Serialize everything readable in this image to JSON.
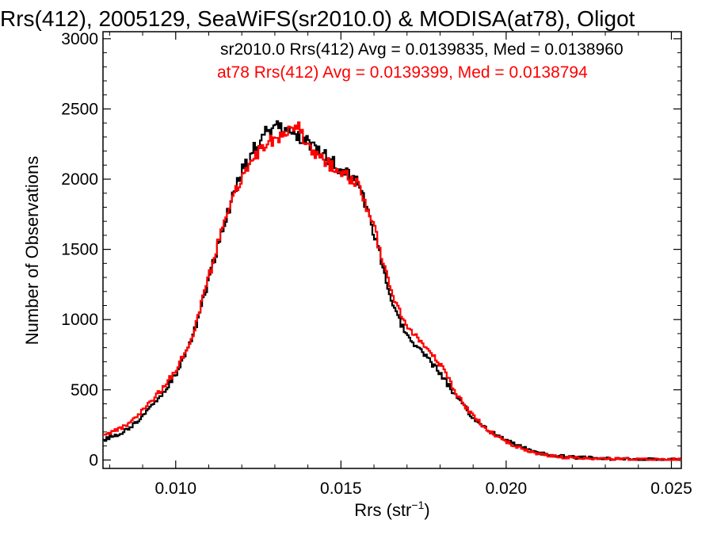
{
  "chart_data": {
    "type": "line",
    "title": "Rrs(412), 2005129, SeaWiFS(sr2010.0) & MODISA(at78), Oligot",
    "xlabel": "Rrs (str",
    "xlabel_sup": "−1",
    "xlabel_close": ")",
    "ylabel": "Number of Observations",
    "xlim": [
      0.0078,
      0.0253
    ],
    "ylim": [
      -60,
      3050
    ],
    "x_ticks": [
      0.01,
      0.015,
      0.02,
      0.025
    ],
    "x_tick_labels": [
      "0.010",
      "0.015",
      "0.020",
      "0.025"
    ],
    "y_ticks": [
      0,
      500,
      1000,
      1500,
      2000,
      2500,
      3000
    ],
    "y_tick_labels": [
      "0",
      "500",
      "1000",
      "1500",
      "2000",
      "2500",
      "3000"
    ],
    "grid": false,
    "annotations": [
      {
        "text": "sr2010.0 Rrs(412) Avg = 0.0139835, Med = 0.0138960",
        "color": "#000000"
      },
      {
        "text": "at78 Rrs(412) Avg = 0.0139399, Med = 0.0138794",
        "color": "#ff0000"
      }
    ],
    "series": [
      {
        "color": "#000000",
        "x": [
          0.0078,
          0.0085,
          0.009,
          0.0095,
          0.01,
          0.0105,
          0.011,
          0.0115,
          0.012,
          0.0125,
          0.0128,
          0.0131,
          0.0134,
          0.0137,
          0.014,
          0.0145,
          0.015,
          0.0155,
          0.016,
          0.0165,
          0.017,
          0.0175,
          0.018,
          0.0185,
          0.019,
          0.0195,
          0.02,
          0.0205,
          0.021,
          0.0215,
          0.022,
          0.023,
          0.024,
          0.0253
        ],
        "y": [
          140,
          210,
          310,
          440,
          610,
          860,
          1280,
          1720,
          2050,
          2270,
          2350,
          2380,
          2330,
          2310,
          2260,
          2170,
          2070,
          1990,
          1620,
          1170,
          870,
          760,
          620,
          450,
          300,
          210,
          140,
          90,
          50,
          30,
          20,
          10,
          5,
          2
        ]
      },
      {
        "color": "#ff0000",
        "x": [
          0.0078,
          0.0085,
          0.009,
          0.0095,
          0.01,
          0.0105,
          0.011,
          0.0115,
          0.012,
          0.0125,
          0.0128,
          0.0131,
          0.0134,
          0.0137,
          0.014,
          0.0145,
          0.015,
          0.0155,
          0.016,
          0.0165,
          0.017,
          0.0175,
          0.018,
          0.0185,
          0.019,
          0.0195,
          0.02,
          0.0205,
          0.021,
          0.0215,
          0.022,
          0.023,
          0.024,
          0.0253
        ],
        "y": [
          180,
          240,
          350,
          480,
          640,
          880,
          1300,
          1740,
          2020,
          2200,
          2260,
          2300,
          2330,
          2380,
          2230,
          2130,
          2040,
          1980,
          1660,
          1210,
          950,
          830,
          680,
          470,
          310,
          205,
          130,
          80,
          45,
          25,
          15,
          8,
          4,
          2
        ]
      }
    ]
  }
}
